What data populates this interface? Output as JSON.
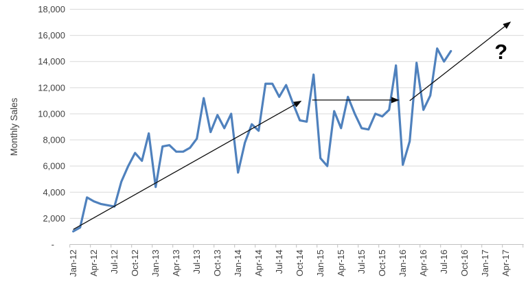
{
  "chart": {
    "background": "#ffffff",
    "colors": {
      "series_line": "#4F81BD",
      "trend_arrow": "#0d0d0d",
      "gridline": "#D9D9D9",
      "axis_line": "#BFBFBF",
      "label_text": "#404040"
    }
  },
  "chart_data": {
    "type": "line",
    "title": "",
    "xlabel": "",
    "ylabel": "Monthly Sales",
    "ylim": [
      0,
      18000
    ],
    "y_tick_step": 2000,
    "grid": "horizontal",
    "legend": "none",
    "y_tick_labels": [
      "-",
      "2,000",
      "4,000",
      "6,000",
      "8,000",
      "10,000",
      "12,000",
      "14,000",
      "16,000",
      "18,000"
    ],
    "x_tick_labels": [
      "Jan-12",
      "Apr-12",
      "Jul-12",
      "Oct-12",
      "Jan-13",
      "Apr-13",
      "Jul-13",
      "Oct-13",
      "Jan-14",
      "Apr-14",
      "Jul-14",
      "Oct-14",
      "Jan-15",
      "Apr-15",
      "Jul-15",
      "Oct-15",
      "Jan-16",
      "Apr-16",
      "Jul-16",
      "Oct-16",
      "Jan-17",
      "Apr-17"
    ],
    "x_axis_months_total": 66,
    "x": [
      "Jan-12",
      "Feb-12",
      "Mar-12",
      "Apr-12",
      "May-12",
      "Jun-12",
      "Jul-12",
      "Aug-12",
      "Sep-12",
      "Oct-12",
      "Nov-12",
      "Dec-12",
      "Jan-13",
      "Feb-13",
      "Mar-13",
      "Apr-13",
      "May-13",
      "Jun-13",
      "Jul-13",
      "Aug-13",
      "Sep-13",
      "Oct-13",
      "Nov-13",
      "Dec-13",
      "Jan-14",
      "Feb-14",
      "Mar-14",
      "Apr-14",
      "May-14",
      "Jun-14",
      "Jul-14",
      "Aug-14",
      "Sep-14",
      "Oct-14",
      "Nov-14",
      "Dec-14",
      "Jan-15",
      "Feb-15",
      "Mar-15",
      "Apr-15",
      "May-15",
      "Jun-15",
      "Jul-15",
      "Aug-15",
      "Sep-15",
      "Oct-15",
      "Nov-15",
      "Dec-15",
      "Jan-16",
      "Feb-16",
      "Mar-16",
      "Apr-16",
      "May-16",
      "Jun-16",
      "Jul-16",
      "Aug-16"
    ],
    "series": [
      {
        "name": "Monthly Sales",
        "values": [
          1000,
          1300,
          3600,
          3300,
          3100,
          3000,
          2900,
          4800,
          6000,
          7000,
          6400,
          8500,
          4400,
          7500,
          7600,
          7100,
          7100,
          7400,
          8100,
          11200,
          8600,
          9900,
          8900,
          10000,
          5500,
          7800,
          9200,
          8700,
          12300,
          12300,
          11300,
          12200,
          10800,
          9500,
          9400,
          13000,
          6600,
          6000,
          10200,
          8900,
          11300,
          10000,
          8900,
          8800,
          10000,
          9800,
          10300,
          13700,
          6100,
          7900,
          13900,
          10300,
          11400,
          15000,
          14000,
          14800
        ]
      }
    ],
    "annotations": {
      "arrows": [
        {
          "name": "rising-trend-2012-2014",
          "from": {
            "month_index": 0,
            "value": 1150
          },
          "to": {
            "month_index": 33.1,
            "value": 10950
          }
        },
        {
          "name": "flat-trend-2015",
          "from": {
            "month_index": 34.8,
            "value": 11050
          },
          "to": {
            "month_index": 47.3,
            "value": 11050
          }
        },
        {
          "name": "projected-trend-2016-2017",
          "from": {
            "month_index": 49.0,
            "value": 11000
          },
          "to": {
            "month_index": 63.6,
            "value": 17000
          }
        }
      ],
      "question_mark": {
        "text": "?",
        "month_index": 62.3,
        "value": 14200
      }
    }
  }
}
